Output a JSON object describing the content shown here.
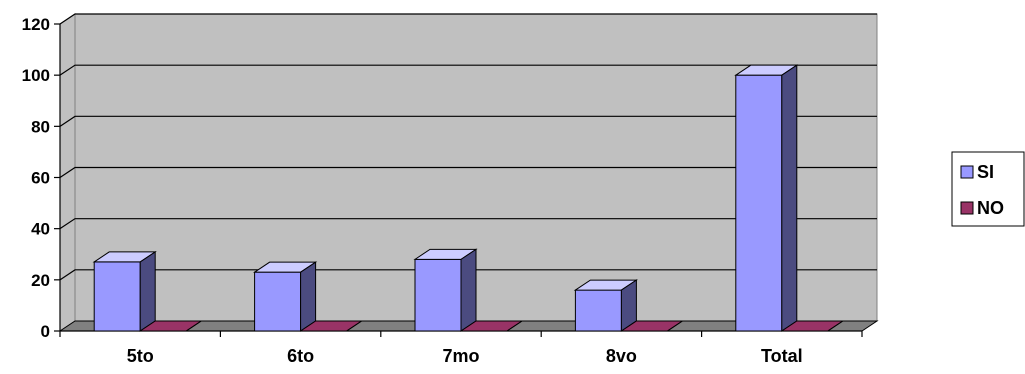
{
  "chart_data": {
    "type": "bar",
    "style": "3d-clustered-column",
    "title": "",
    "xlabel": "",
    "ylabel": "",
    "categories": [
      "5to",
      "6to",
      "7mo",
      "8vo",
      "Total"
    ],
    "series": [
      {
        "name": "SI",
        "values": [
          27,
          23,
          28,
          16,
          100
        ],
        "color": "#9999ff",
        "side_color": "#4b4b80",
        "top_color": "#ccccff"
      },
      {
        "name": "NO",
        "values": [
          0,
          0,
          0,
          0,
          0
        ],
        "color": "#993366",
        "side_color": "#4d1a33",
        "top_color": "#c46a94"
      }
    ],
    "ylim": [
      0,
      120
    ],
    "yticks": [
      0,
      20,
      40,
      60,
      80,
      100,
      120
    ],
    "grid": true,
    "wall_color": "#c0c0c0",
    "floor_color": "#808080",
    "legend_position": "right"
  }
}
